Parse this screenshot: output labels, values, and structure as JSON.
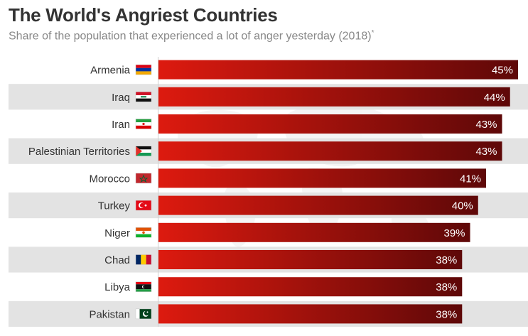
{
  "header": {
    "title": "The World's Angriest Countries",
    "subtitle": "Share of the population that experienced a lot of anger yesterday (2018)",
    "subtitle_mark": "*"
  },
  "colors": {
    "bar_start": "#dd1a0f",
    "bar_end": "#5e0808",
    "row_band": "#e3e3e3",
    "text": "#333333"
  },
  "chart_data": {
    "type": "bar",
    "orientation": "horizontal",
    "categories": [
      "Armenia",
      "Iraq",
      "Iran",
      "Palestinian Territories",
      "Morocco",
      "Turkey",
      "Niger",
      "Chad",
      "Libya",
      "Pakistan"
    ],
    "flag_icons": [
      "armenia-flag-icon",
      "iraq-flag-icon",
      "iran-flag-icon",
      "palestine-flag-icon",
      "morocco-flag-icon",
      "turkey-flag-icon",
      "niger-flag-icon",
      "chad-flag-icon",
      "libya-flag-icon",
      "pakistan-flag-icon"
    ],
    "values": [
      45,
      44,
      43,
      43,
      41,
      40,
      39,
      38,
      38,
      38
    ],
    "value_suffix": "%",
    "xlim": [
      0,
      45
    ],
    "grid": false,
    "legend": "none"
  }
}
